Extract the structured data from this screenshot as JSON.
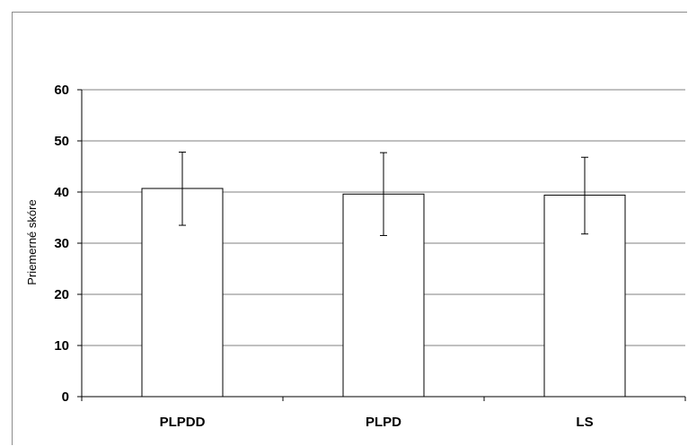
{
  "chart_data": {
    "type": "bar",
    "categories": [
      "PLPDD",
      "PLPD",
      "LS"
    ],
    "values": [
      40.7,
      39.6,
      39.4
    ],
    "error_low": [
      33.5,
      31.5,
      31.8
    ],
    "error_high": [
      47.8,
      47.7,
      46.8
    ],
    "ylabel": "Priemerné skóre",
    "xlabel": "",
    "ylim": [
      0,
      60
    ],
    "yticks": [
      0,
      10,
      20,
      30,
      40,
      50,
      60
    ],
    "grid": true,
    "legend": "none",
    "colors": {
      "bar_fill": "#ffffff",
      "bar_stroke": "#000000",
      "grid": "#808080"
    }
  }
}
